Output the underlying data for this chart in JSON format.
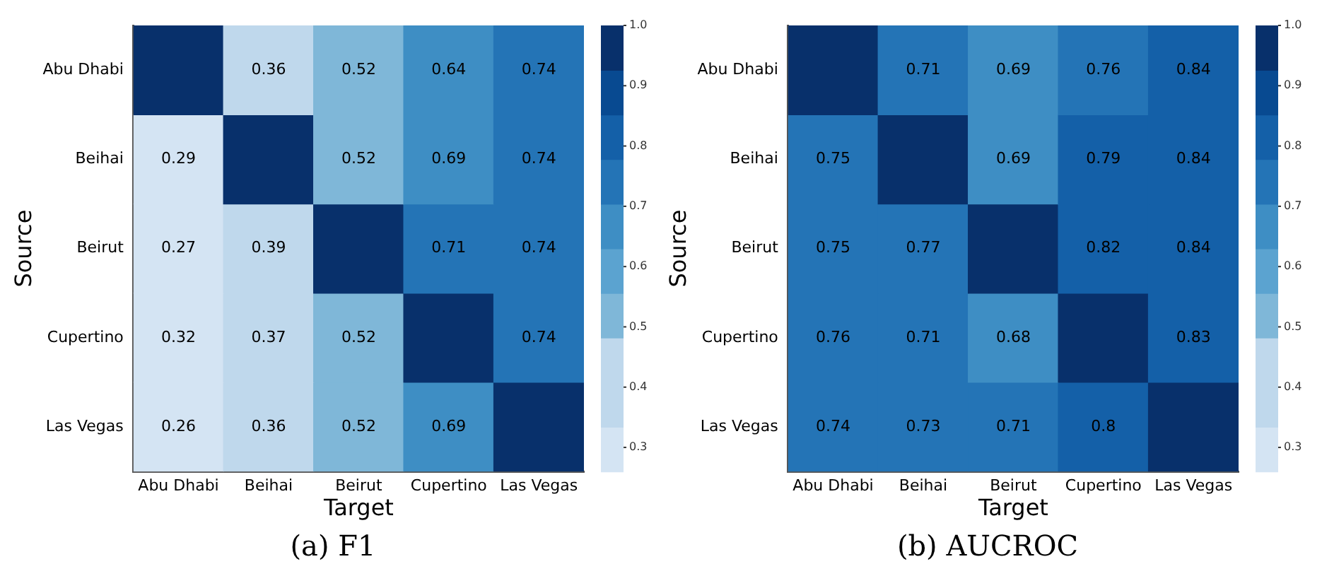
{
  "chart_data": [
    {
      "type": "heatmap",
      "title": "(a) F1",
      "xlabel": "Target",
      "ylabel": "Source",
      "categories": [
        "Abu Dhabi",
        "Beihai",
        "Beirut",
        "Cupertino",
        "Las Vegas"
      ],
      "y_categories": [
        "Abu Dhabi",
        "Beihai",
        "Beirut",
        "Cupertino",
        "Las Vegas"
      ],
      "cells": [
        [
          1,
          0.36,
          0.52,
          0.64,
          0.74
        ],
        [
          0.29,
          1,
          0.52,
          0.69,
          0.74
        ],
        [
          0.27,
          0.39,
          1,
          0.71,
          0.74
        ],
        [
          0.32,
          0.37,
          0.52,
          1,
          0.74
        ],
        [
          0.26,
          0.36,
          0.52,
          0.69,
          1
        ]
      ],
      "cell_labels": [
        [
          null,
          "0.36",
          "0.52",
          "0.64",
          "0.74"
        ],
        [
          "0.29",
          null,
          "0.52",
          "0.69",
          "0.74"
        ],
        [
          "0.27",
          "0.39",
          null,
          "0.71",
          "0.74"
        ],
        [
          "0.32",
          "0.37",
          "0.52",
          null,
          "0.74"
        ],
        [
          "0.26",
          "0.36",
          "0.52",
          "0.69",
          null
        ]
      ],
      "clim": [
        0.26,
        1.0
      ],
      "cticks": [
        {
          "value": 0.3,
          "label": "0.3"
        },
        {
          "value": 0.4,
          "label": "0.4"
        },
        {
          "value": 0.5,
          "label": "0.5"
        },
        {
          "value": 0.6,
          "label": "0.6"
        },
        {
          "value": 0.7,
          "label": "0.7"
        },
        {
          "value": 0.8,
          "label": "0.8"
        },
        {
          "value": 0.9,
          "label": "0.9"
        },
        {
          "value": 1.0,
          "label": "1.0"
        }
      ]
    },
    {
      "type": "heatmap",
      "title": "(b) AUCROC",
      "xlabel": "Target",
      "ylabel": "Source",
      "categories": [
        "Abu Dhabi",
        "Beihai",
        "Beirut",
        "Cupertino",
        "Las Vegas"
      ],
      "y_categories": [
        "Abu Dhabi",
        "Beihai",
        "Beirut",
        "Cupertino",
        "Las Vegas"
      ],
      "cells": [
        [
          1,
          0.71,
          0.69,
          0.76,
          0.84
        ],
        [
          0.75,
          1,
          0.69,
          0.79,
          0.84
        ],
        [
          0.75,
          0.77,
          1,
          0.82,
          0.84
        ],
        [
          0.76,
          0.71,
          0.68,
          1,
          0.83
        ],
        [
          0.74,
          0.73,
          0.71,
          0.8,
          1
        ]
      ],
      "cell_labels": [
        [
          null,
          "0.71",
          "0.69",
          "0.76",
          "0.84"
        ],
        [
          "0.75",
          null,
          "0.69",
          "0.79",
          "0.84"
        ],
        [
          "0.75",
          "0.77",
          null,
          "0.82",
          "0.84"
        ],
        [
          "0.76",
          "0.71",
          "0.68",
          null,
          "0.83"
        ],
        [
          "0.74",
          "0.73",
          "0.71",
          "0.8",
          null
        ]
      ],
      "clim": [
        0.26,
        1.0
      ],
      "cticks": [
        {
          "value": 0.3,
          "label": "0.3"
        },
        {
          "value": 0.4,
          "label": "0.4"
        },
        {
          "value": 0.5,
          "label": "0.5"
        },
        {
          "value": 0.6,
          "label": "0.6"
        },
        {
          "value": 0.7,
          "label": "0.7"
        },
        {
          "value": 0.8,
          "label": "0.8"
        },
        {
          "value": 0.9,
          "label": "0.9"
        },
        {
          "value": 1.0,
          "label": "1.0"
        }
      ]
    }
  ]
}
